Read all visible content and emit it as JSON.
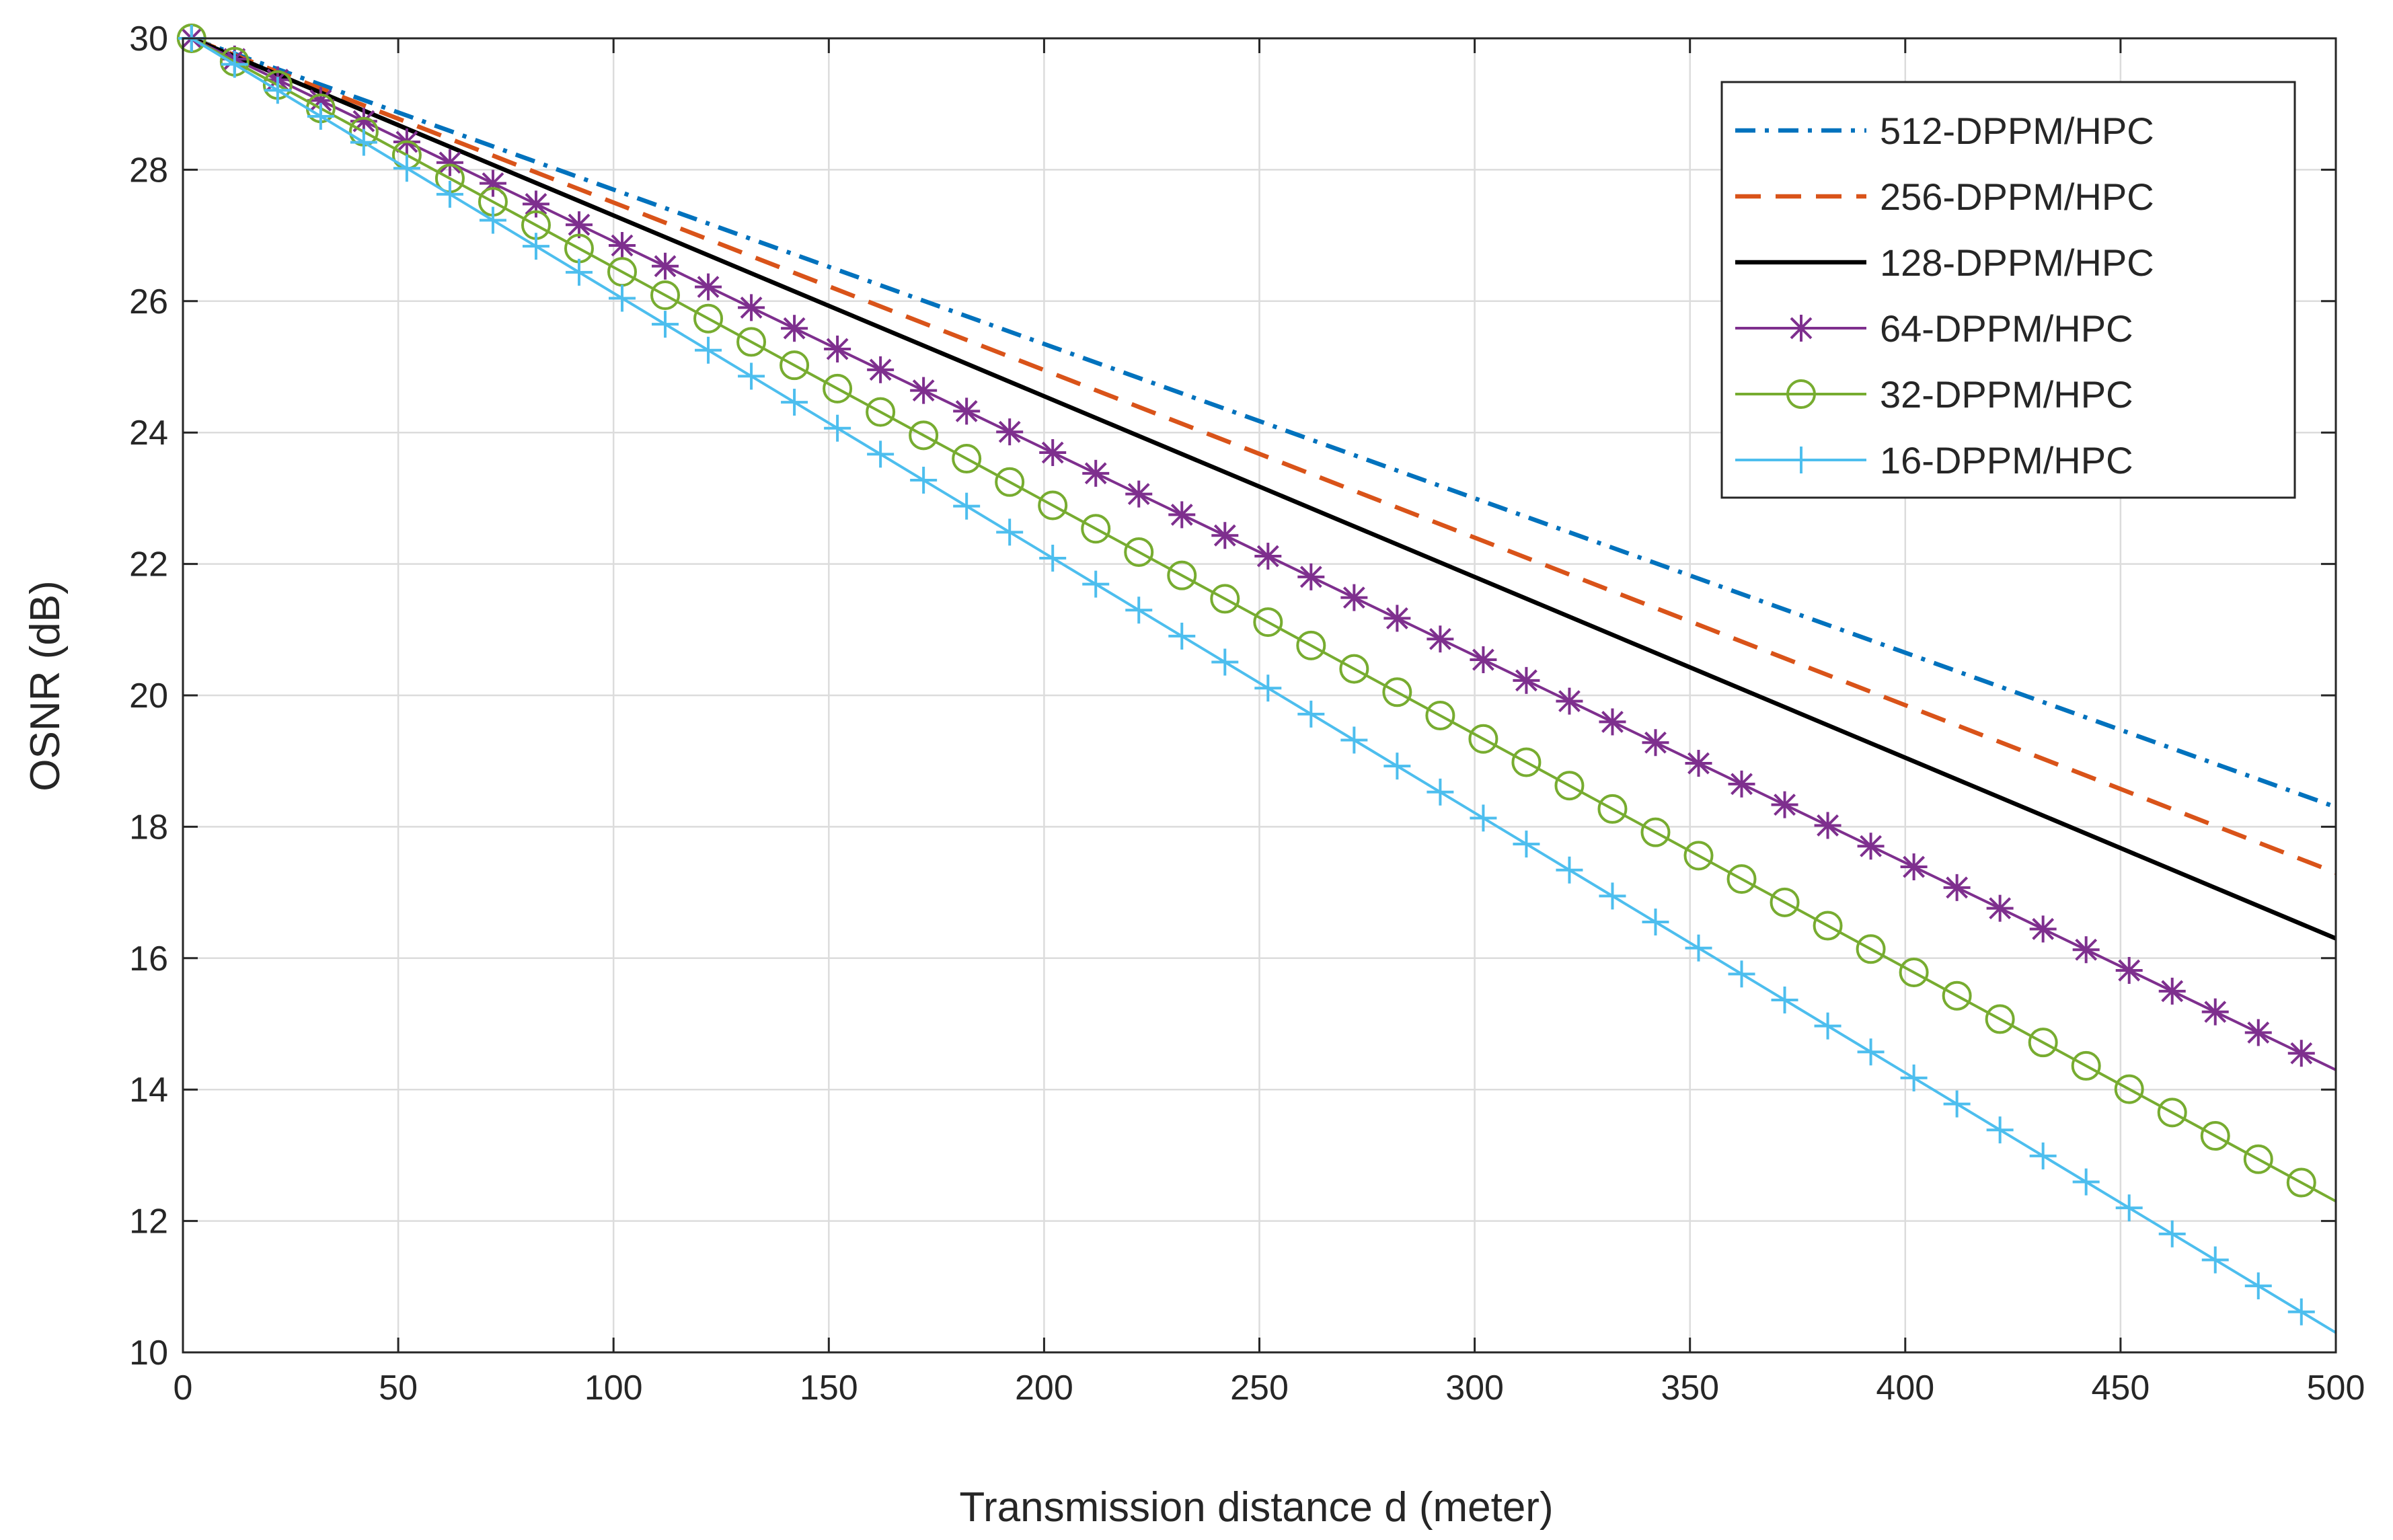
{
  "chart_data": {
    "type": "line",
    "title": "",
    "xlabel": "Transmission distance d (meter)",
    "ylabel": "OSNR (dB)",
    "xlim": [
      0,
      500
    ],
    "ylim": [
      10,
      30
    ],
    "xticks": [
      0,
      50,
      100,
      150,
      200,
      250,
      300,
      350,
      400,
      450,
      500
    ],
    "yticks": [
      10,
      12,
      14,
      16,
      18,
      20,
      22,
      24,
      26,
      28,
      30
    ],
    "grid": true,
    "legend_position": "top-right",
    "x_start": 2,
    "series": [
      {
        "name": "512-DPPM/HPC",
        "color": "#0072BD",
        "dash": "dashdot",
        "marker": "none",
        "start": 30.0,
        "end": 18.3
      },
      {
        "name": "256-DPPM/HPC",
        "color": "#D95319",
        "dash": "dashed",
        "marker": "none",
        "start": 30.0,
        "end": 17.3
      },
      {
        "name": "128-DPPM/HPC",
        "color": "#000000",
        "dash": "solid",
        "marker": "none",
        "start": 30.0,
        "end": 16.3
      },
      {
        "name": "64-DPPM/HPC",
        "color": "#7E2F8E",
        "dash": "solid",
        "marker": "asterisk",
        "start": 30.0,
        "end": 14.3
      },
      {
        "name": "32-DPPM/HPC",
        "color": "#77AC30",
        "dash": "solid",
        "marker": "circle",
        "start": 30.0,
        "end": 12.3
      },
      {
        "name": "16-DPPM/HPC",
        "color": "#4DBEEE",
        "dash": "solid",
        "marker": "plus",
        "start": 30.0,
        "end": 10.3
      }
    ],
    "marker_x_start": 2,
    "marker_x_step": 10
  }
}
